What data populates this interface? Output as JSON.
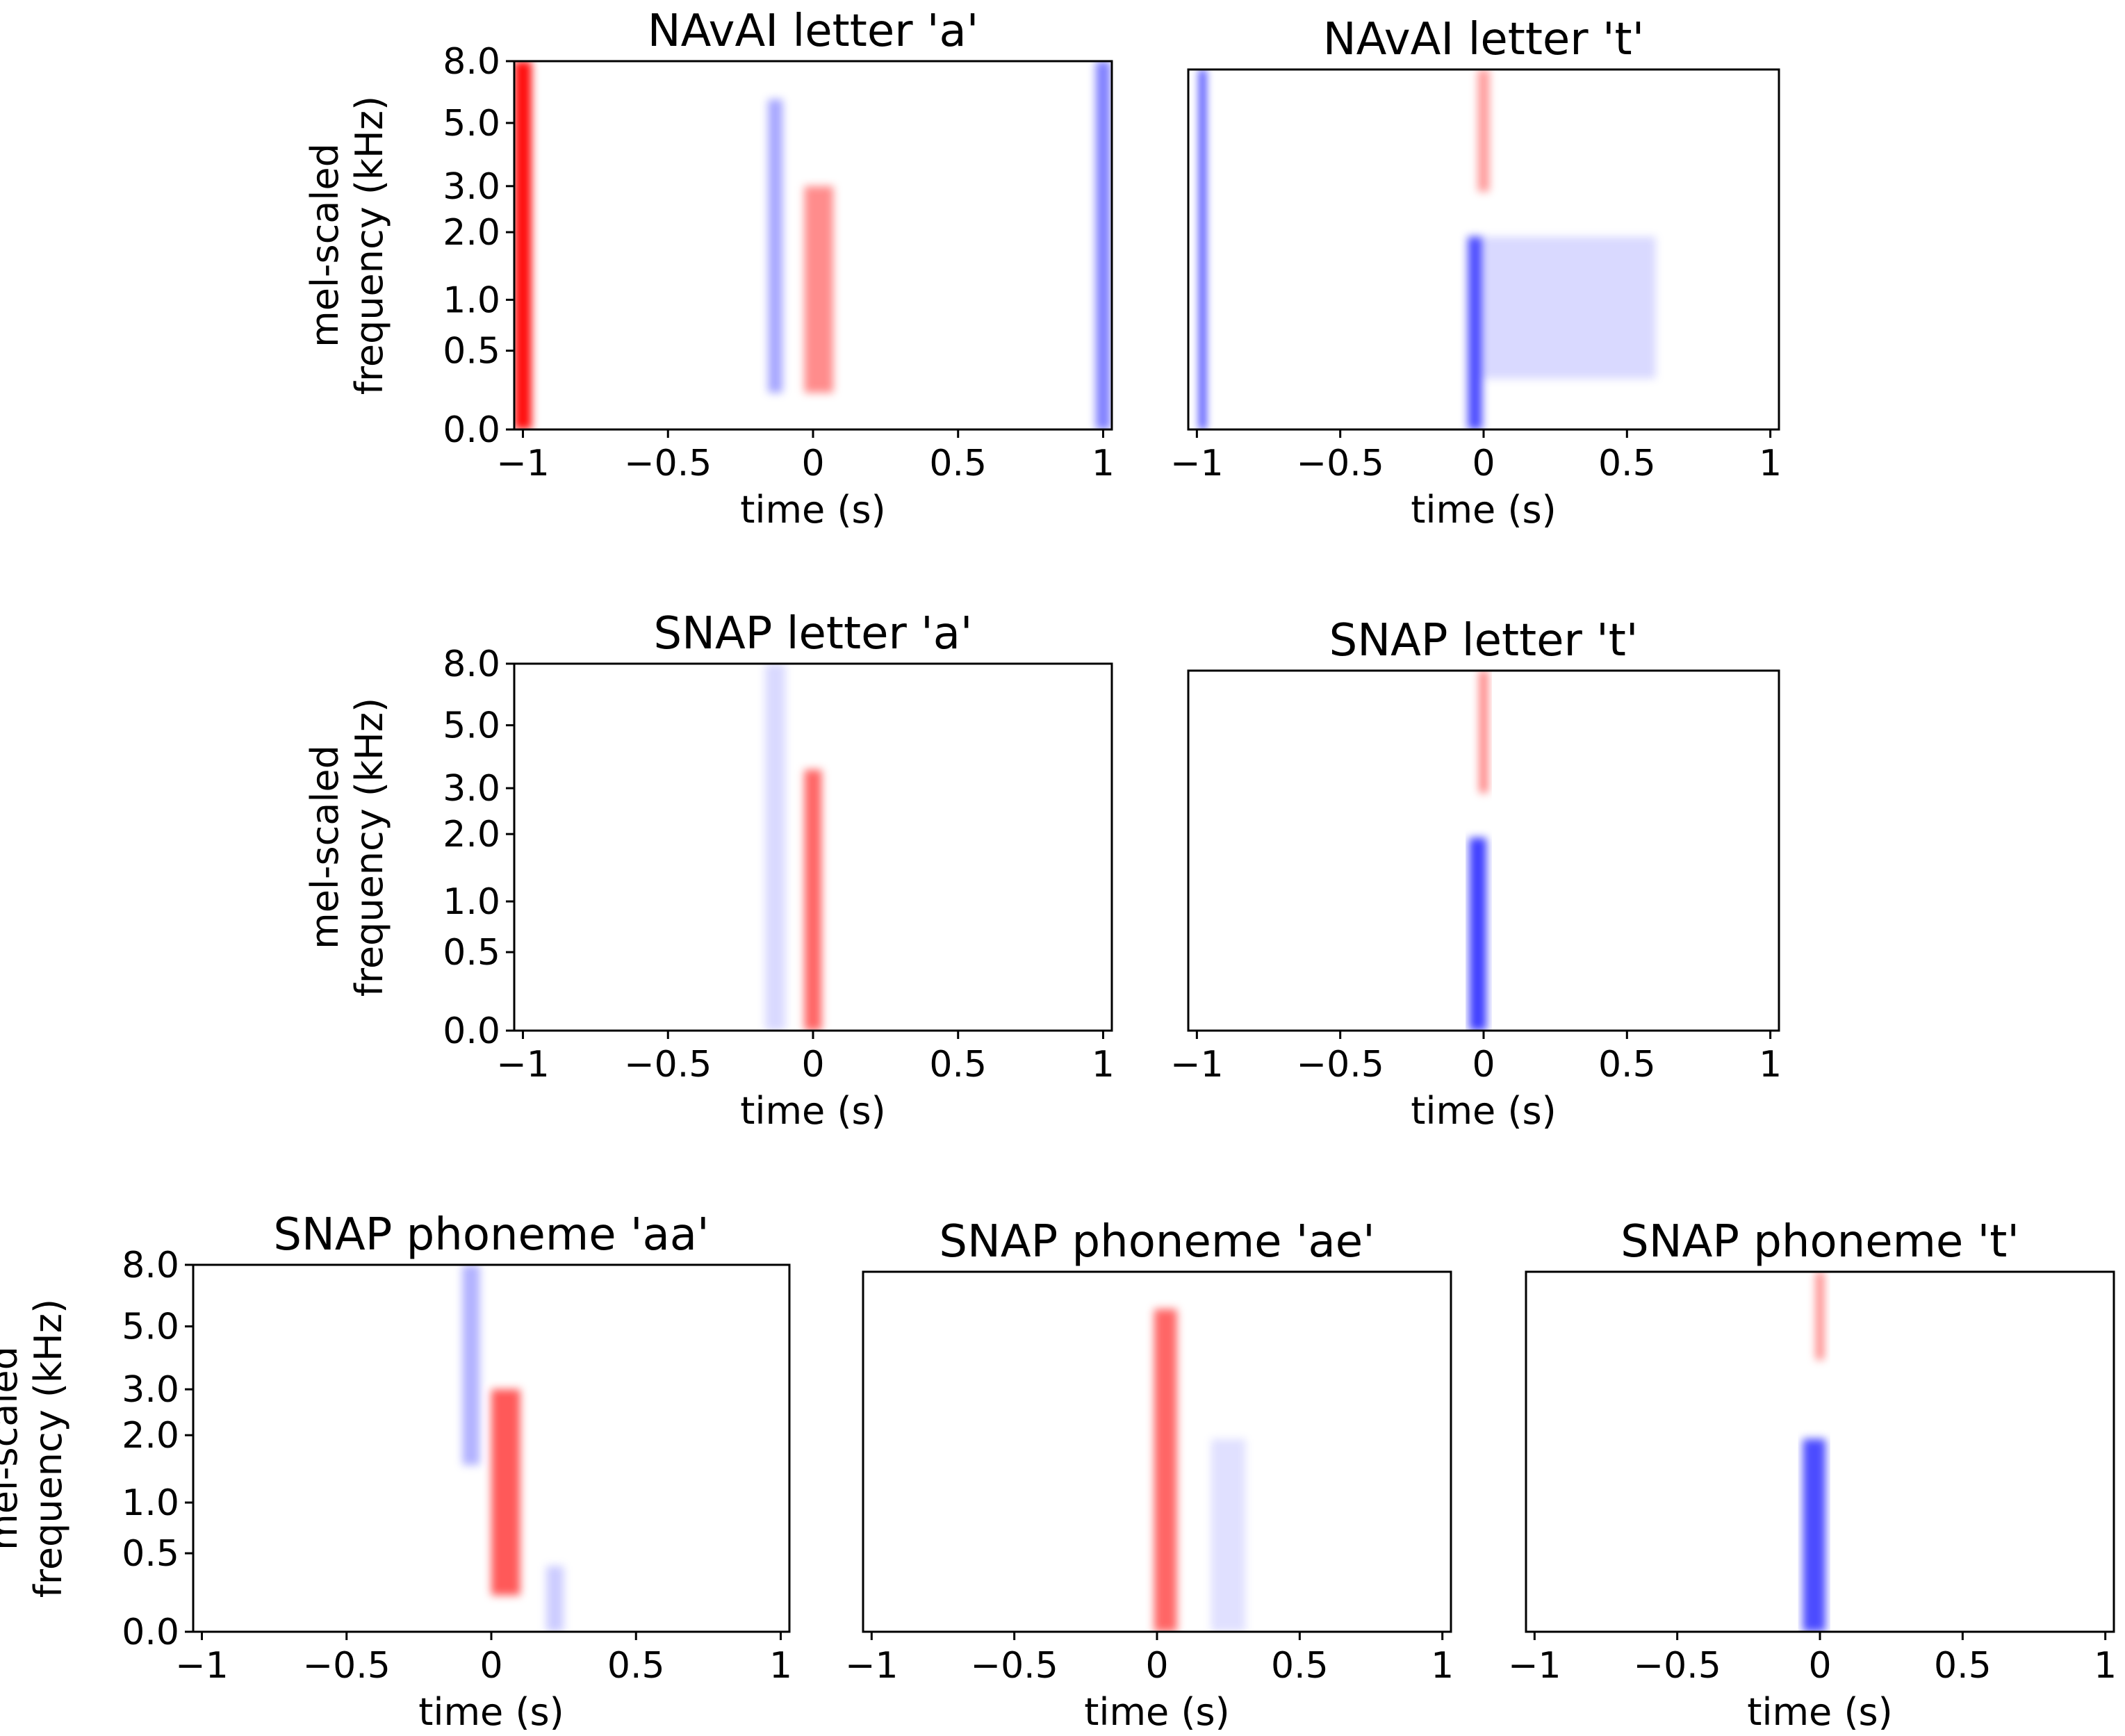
{
  "figure": {
    "panels": [
      {
        "title": "NAvAI letter 'a'",
        "show_ylabel": true
      },
      {
        "title": "NAvAI letter 't'",
        "show_ylabel": false
      },
      {
        "title": "SNAP letter 'a'",
        "show_ylabel": true
      },
      {
        "title": "SNAP letter 't'",
        "show_ylabel": false
      },
      {
        "title": "SNAP phoneme 'aa'",
        "show_ylabel": true
      },
      {
        "title": "SNAP phoneme 'ae'",
        "show_ylabel": false
      },
      {
        "title": "SNAP phoneme 't'",
        "show_ylabel": false
      }
    ],
    "xlabel": "time (s)",
    "ylabel_line1": "mel-scaled",
    "ylabel_line2": "frequency (kHz)",
    "xticks": [
      -1,
      -0.5,
      0,
      0.5,
      1
    ],
    "xtick_labels": [
      "−1",
      "−0.5",
      "0",
      "0.5",
      "1"
    ],
    "yticks": [
      0.0,
      0.5,
      1.0,
      2.0,
      3.0,
      5.0,
      8.0
    ],
    "ytick_labels": [
      "0.0",
      "0.5",
      "1.0",
      "2.0",
      "3.0",
      "5.0",
      "8.0"
    ],
    "colors": {
      "positive": "#ff0000",
      "negative": "#0000ff",
      "neutral": "#ffffff"
    }
  },
  "chart_data": [
    {
      "type": "heatmap",
      "title": "NAvAI letter 'a'",
      "xlabel": "time (s)",
      "ylabel": "mel-scaled frequency (kHz)",
      "xlim": [
        -1.03,
        1.03
      ],
      "ylim": [
        0,
        8
      ],
      "features": [
        {
          "t": -1.0,
          "width": 0.06,
          "f_low": 0,
          "f_high": 8,
          "sign": 1,
          "strength": 0.95
        },
        {
          "t": -0.13,
          "width": 0.05,
          "f_low": 0.2,
          "f_high": 6,
          "sign": -1,
          "strength": 0.35
        },
        {
          "t": 0.02,
          "width": 0.1,
          "f_low": 0.2,
          "f_high": 3,
          "sign": 1,
          "strength": 0.45
        },
        {
          "t": 1.0,
          "width": 0.05,
          "f_low": 0,
          "f_high": 8,
          "sign": -1,
          "strength": 0.5
        }
      ]
    },
    {
      "type": "heatmap",
      "title": "NAvAI letter 't'",
      "xlabel": "time (s)",
      "ylabel": "",
      "xlim": [
        -1.03,
        1.03
      ],
      "ylim": [
        0,
        8
      ],
      "features": [
        {
          "t": -0.98,
          "width": 0.02,
          "f_low": 0,
          "f_high": 8,
          "sign": -1,
          "strength": 0.9
        },
        {
          "t": 0.0,
          "width": 0.04,
          "f_low": 3,
          "f_high": 8,
          "sign": 1,
          "strength": 0.4
        },
        {
          "t": -0.03,
          "width": 0.05,
          "f_low": 0,
          "f_high": 2,
          "sign": -1,
          "strength": 0.7
        },
        {
          "t": 0.3,
          "width": 0.6,
          "f_low": 0.3,
          "f_high": 2,
          "sign": -1,
          "strength": 0.15
        }
      ]
    },
    {
      "type": "heatmap",
      "title": "SNAP letter 'a'",
      "xlabel": "time (s)",
      "ylabel": "mel-scaled frequency (kHz)",
      "xlim": [
        -1.03,
        1.03
      ],
      "ylim": [
        0,
        8
      ],
      "features": [
        {
          "t": -0.13,
          "width": 0.07,
          "f_low": 0,
          "f_high": 8,
          "sign": -1,
          "strength": 0.15
        },
        {
          "t": 0.0,
          "width": 0.06,
          "f_low": 0,
          "f_high": 3.5,
          "sign": 1,
          "strength": 0.6
        }
      ]
    },
    {
      "type": "heatmap",
      "title": "SNAP letter 't'",
      "xlabel": "time (s)",
      "ylabel": "",
      "xlim": [
        -1.03,
        1.03
      ],
      "ylim": [
        0,
        8
      ],
      "features": [
        {
          "t": 0.0,
          "width": 0.03,
          "f_low": 3,
          "f_high": 8,
          "sign": 1,
          "strength": 0.5
        },
        {
          "t": -0.02,
          "width": 0.06,
          "f_low": 0,
          "f_high": 2,
          "sign": -1,
          "strength": 0.75
        }
      ]
    },
    {
      "type": "heatmap",
      "title": "SNAP phoneme 'aa'",
      "xlabel": "time (s)",
      "ylabel": "mel-scaled frequency (kHz)",
      "xlim": [
        -1.03,
        1.03
      ],
      "ylim": [
        0,
        8
      ],
      "features": [
        {
          "t": -0.07,
          "width": 0.06,
          "f_low": 1.5,
          "f_high": 8,
          "sign": -1,
          "strength": 0.3
        },
        {
          "t": 0.05,
          "width": 0.1,
          "f_low": 0.2,
          "f_high": 3,
          "sign": 1,
          "strength": 0.65
        },
        {
          "t": 0.22,
          "width": 0.06,
          "f_low": 0,
          "f_high": 0.4,
          "sign": -1,
          "strength": 0.2
        }
      ]
    },
    {
      "type": "heatmap",
      "title": "SNAP phoneme 'ae'",
      "xlabel": "time (s)",
      "ylabel": "",
      "xlim": [
        -1.03,
        1.03
      ],
      "ylim": [
        0,
        8
      ],
      "features": [
        {
          "t": 0.03,
          "width": 0.08,
          "f_low": 0,
          "f_high": 6,
          "sign": 1,
          "strength": 0.6
        },
        {
          "t": 0.25,
          "width": 0.12,
          "f_low": 0,
          "f_high": 2,
          "sign": -1,
          "strength": 0.12
        }
      ]
    },
    {
      "type": "heatmap",
      "title": "SNAP phoneme 't'",
      "xlabel": "time (s)",
      "ylabel": "",
      "xlim": [
        -1.03,
        1.03
      ],
      "ylim": [
        0,
        8
      ],
      "features": [
        {
          "t": 0.0,
          "width": 0.03,
          "f_low": 4,
          "f_high": 8,
          "sign": 1,
          "strength": 0.45
        },
        {
          "t": -0.02,
          "width": 0.08,
          "f_low": 0,
          "f_high": 2,
          "sign": -1,
          "strength": 0.7
        }
      ]
    }
  ]
}
